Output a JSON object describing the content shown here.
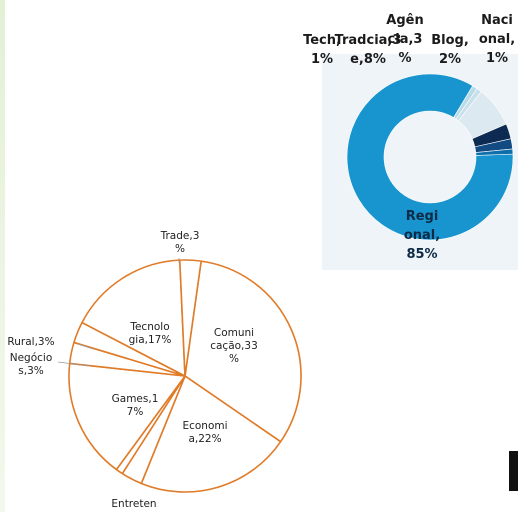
{
  "chart_data": [
    {
      "type": "pie",
      "variant": "donut",
      "title": "",
      "slices": [
        {
          "label": "Regi|onal,|85%",
          "value": 85,
          "color": "#1895cf"
        },
        {
          "label": "",
          "value": 1,
          "color": "#b9dbe9"
        },
        {
          "label": "Tech,|1%",
          "value": 1,
          "color": "#c7e0ec"
        },
        {
          "label": "Tradcia,3|e,8%",
          "value": 8,
          "color": "#dde9f0"
        },
        {
          "label": "Agên|cia,3|%",
          "value": 3,
          "color": "#0d2b52"
        },
        {
          "label": "Blog,|2%",
          "value": 2,
          "color": "#124a82"
        },
        {
          "label": "Naci|onal,|1%",
          "value": 1,
          "color": "#0f6fab"
        }
      ]
    },
    {
      "type": "pie",
      "title": "",
      "slices": [
        {
          "label": "Comuni|cação,33|%",
          "value": 33
        },
        {
          "label": "Economi|a,22%",
          "value": 22
        },
        {
          "label": "Entreten",
          "value": 3
        },
        {
          "label": "",
          "value": 1
        },
        {
          "label": "Games,1|7%",
          "value": 17
        },
        {
          "label": "Negócio|s,3%",
          "value": 3
        },
        {
          "label": "Rural,3%",
          "value": 3
        },
        {
          "label": "Tecnolo|gia,17%",
          "value": 17
        },
        {
          "label": "Trade,3|%",
          "value": 3
        }
      ],
      "stroke_color": "#e07b28"
    }
  ]
}
